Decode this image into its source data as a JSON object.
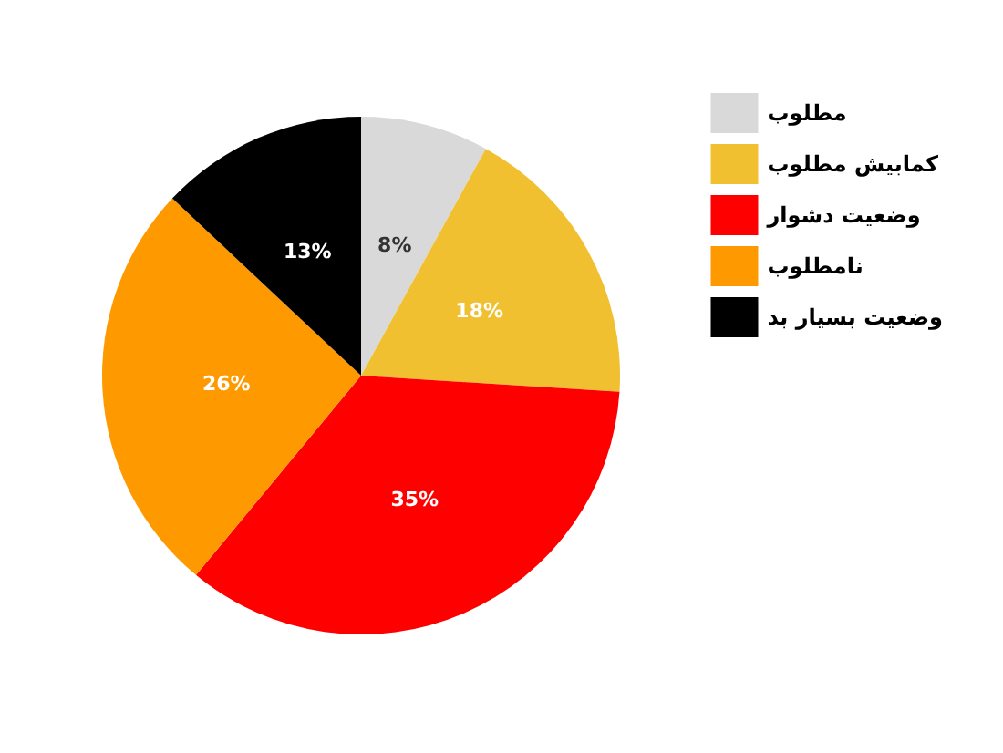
{
  "chart_data": {
    "type": "pie",
    "categories": [
      "مطلوب",
      "کمابیش مطلوب",
      "وضعیت دشوار",
      "نامطلوب",
      "وضعیت بسیار بد"
    ],
    "values": [
      8,
      18,
      35,
      26,
      13
    ],
    "colors": [
      "#d9d9d9",
      "#f0c030",
      "#ff0000",
      "#ff9900",
      "#000000"
    ],
    "value_labels": [
      "8%",
      "18%",
      "35%",
      "26%",
      "13%"
    ],
    "legend": "top right"
  }
}
